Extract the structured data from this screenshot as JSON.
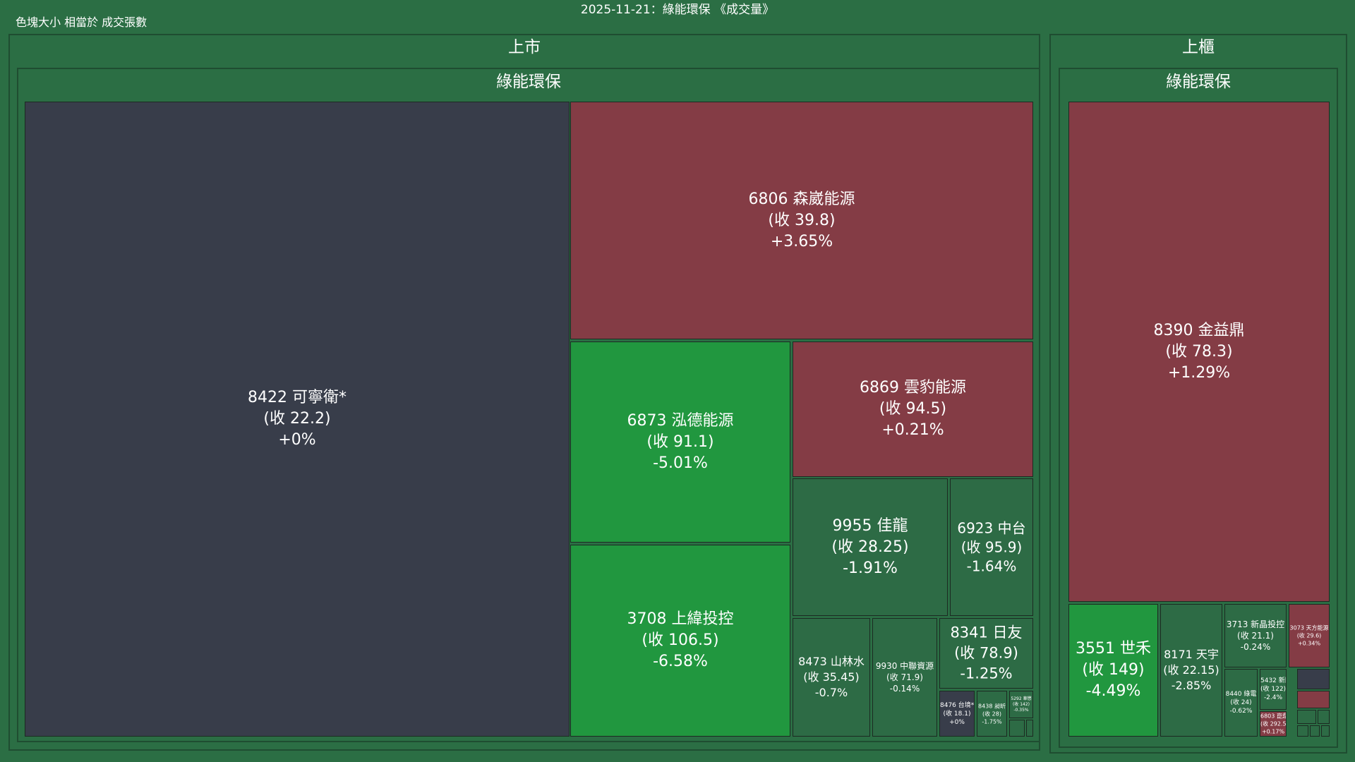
{
  "header": {
    "title": "2025-11-21：綠能環保 《成交量》",
    "subtitle": "色塊大小 相當於 成交張數"
  },
  "colors": {
    "background": "#2b6e44",
    "group_fill": "#2b6e44",
    "neutral": "#383d4a",
    "up": "#843c45",
    "down_strong": "#21973f",
    "down": "#2d6b45"
  },
  "chart_data": {
    "type": "treemap",
    "title": "2025-11-21：綠能環保 《成交量》",
    "size_metric": "色塊大小 相當於 成交張數",
    "groups": [
      {
        "market": "上市",
        "sector": "綠能環保",
        "stocks": [
          {
            "code": "8422",
            "name": "可寧衛*",
            "close": "22.2",
            "change": "+0%"
          },
          {
            "code": "6806",
            "name": "森崴能源",
            "close": "39.8",
            "change": "+3.65%"
          },
          {
            "code": "6873",
            "name": "泓德能源",
            "close": "91.1",
            "change": "-5.01%"
          },
          {
            "code": "6869",
            "name": "雲豹能源",
            "close": "94.5",
            "change": "+0.21%"
          },
          {
            "code": "3708",
            "name": "上緯投控",
            "close": "106.5",
            "change": "-6.58%"
          },
          {
            "code": "9955",
            "name": "佳龍",
            "close": "28.25",
            "change": "-1.91%"
          },
          {
            "code": "6923",
            "name": "中台",
            "close": "95.9",
            "change": "-1.64%"
          },
          {
            "code": "8473",
            "name": "山林水",
            "close": "35.45",
            "change": "-0.7%"
          },
          {
            "code": "9930",
            "name": "中聯資源",
            "close": "71.9",
            "change": "-0.14%"
          },
          {
            "code": "8341",
            "name": "日友",
            "close": "78.9",
            "change": "-1.25%"
          },
          {
            "code": "8476",
            "name": "台境*",
            "close": "18.1",
            "change": "+0%"
          },
          {
            "code": "8438",
            "name": "昶昕",
            "close": "28",
            "change": "-1.75%"
          },
          {
            "code": "5292",
            "name": "華懋",
            "close": "142",
            "change": "-0.35%"
          }
        ]
      },
      {
        "market": "上櫃",
        "sector": "綠能環保",
        "stocks": [
          {
            "code": "8390",
            "name": "金益鼎",
            "close": "78.3",
            "change": "+1.29%"
          },
          {
            "code": "3551",
            "name": "世禾",
            "close": "149",
            "change": "-4.49%"
          },
          {
            "code": "8171",
            "name": "天宇",
            "close": "22.15",
            "change": "-2.85%"
          },
          {
            "code": "3713",
            "name": "新晶投控",
            "close": "21.1",
            "change": "-0.24%"
          },
          {
            "code": "3073",
            "name": "天方能源",
            "close": "29.6",
            "change": "+0.34%"
          },
          {
            "code": "8440",
            "name": "綠電",
            "close": "24",
            "change": "-0.62%"
          },
          {
            "code": "5432",
            "name": "新門",
            "close": "122",
            "change": "-2.4%"
          },
          {
            "code": "6803",
            "name": "崑鼎",
            "close": "292.5",
            "change": "+0.17%"
          }
        ]
      }
    ]
  }
}
